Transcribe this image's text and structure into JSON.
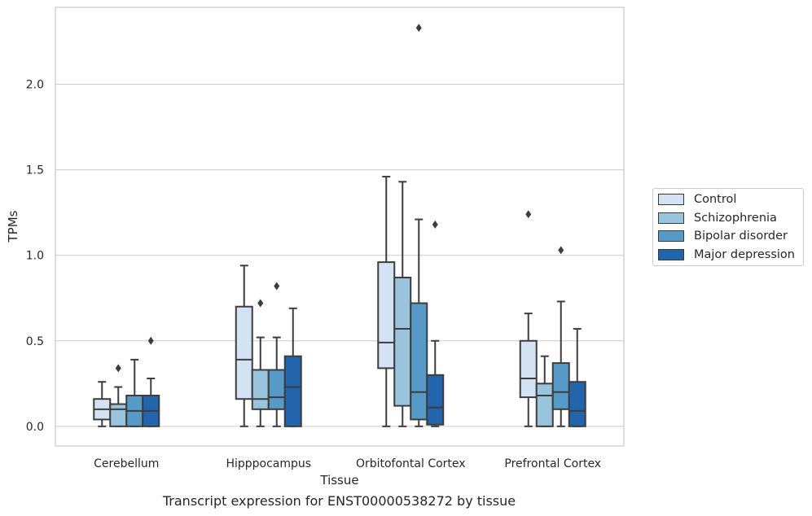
{
  "chart_data": {
    "type": "box",
    "title": "Transcript expression for ENST00000538272 by tissue",
    "xlabel": "Tissue",
    "ylabel": "TPMs",
    "ylim": [
      -0.115,
      2.45
    ],
    "yticks": [
      "0.0",
      "0.5",
      "1.0",
      "1.5",
      "2.0"
    ],
    "categories": [
      "Cerebellum",
      "Hipppocampus",
      "Orbitofontal Cortex",
      "Prefrontal Cortex"
    ],
    "legend_position": "right",
    "grid": true,
    "series": [
      {
        "name": "Control",
        "color": "#d3e3f3",
        "boxes": [
          {
            "min": 0.0,
            "q1": 0.04,
            "median": 0.1,
            "q3": 0.16,
            "max": 0.26,
            "outliers": []
          },
          {
            "min": 0.0,
            "q1": 0.16,
            "median": 0.39,
            "q3": 0.7,
            "max": 0.94,
            "outliers": []
          },
          {
            "min": 0.0,
            "q1": 0.34,
            "median": 0.49,
            "q3": 0.96,
            "max": 1.46,
            "outliers": []
          },
          {
            "min": 0.0,
            "q1": 0.17,
            "median": 0.28,
            "q3": 0.5,
            "max": 0.66,
            "outliers": [
              1.24
            ]
          }
        ]
      },
      {
        "name": "Schizophrenia",
        "color": "#9ac4dd",
        "boxes": [
          {
            "min": 0.0,
            "q1": 0.0,
            "median": 0.1,
            "q3": 0.13,
            "max": 0.23,
            "outliers": [
              0.34
            ]
          },
          {
            "min": 0.0,
            "q1": 0.1,
            "median": 0.16,
            "q3": 0.33,
            "max": 0.52,
            "outliers": [
              0.72
            ]
          },
          {
            "min": 0.0,
            "q1": 0.12,
            "median": 0.57,
            "q3": 0.87,
            "max": 1.43,
            "outliers": []
          },
          {
            "min": 0.0,
            "q1": 0.0,
            "median": 0.18,
            "q3": 0.25,
            "max": 0.41,
            "outliers": []
          }
        ]
      },
      {
        "name": "Bipolar disorder",
        "color": "#5799c7",
        "boxes": [
          {
            "min": 0.0,
            "q1": 0.0,
            "median": 0.09,
            "q3": 0.18,
            "max": 0.39,
            "outliers": []
          },
          {
            "min": 0.0,
            "q1": 0.1,
            "median": 0.17,
            "q3": 0.33,
            "max": 0.52,
            "outliers": [
              0.82
            ]
          },
          {
            "min": 0.0,
            "q1": 0.04,
            "median": 0.2,
            "q3": 0.72,
            "max": 1.21,
            "outliers": [
              2.33
            ]
          },
          {
            "min": 0.0,
            "q1": 0.1,
            "median": 0.2,
            "q3": 0.37,
            "max": 0.73,
            "outliers": [
              1.03
            ]
          }
        ]
      },
      {
        "name": "Major depression",
        "color": "#2265ac",
        "boxes": [
          {
            "min": 0.0,
            "q1": 0.0,
            "median": 0.09,
            "q3": 0.18,
            "max": 0.28,
            "outliers": [
              0.5
            ]
          },
          {
            "min": 0.0,
            "q1": 0.0,
            "median": 0.23,
            "q3": 0.41,
            "max": 0.69,
            "outliers": []
          },
          {
            "min": 0.0,
            "q1": 0.01,
            "median": 0.11,
            "q3": 0.3,
            "max": 0.5,
            "outliers": [
              1.18
            ]
          },
          {
            "min": 0.0,
            "q1": 0.0,
            "median": 0.09,
            "q3": 0.26,
            "max": 0.57,
            "outliers": []
          }
        ]
      }
    ]
  }
}
